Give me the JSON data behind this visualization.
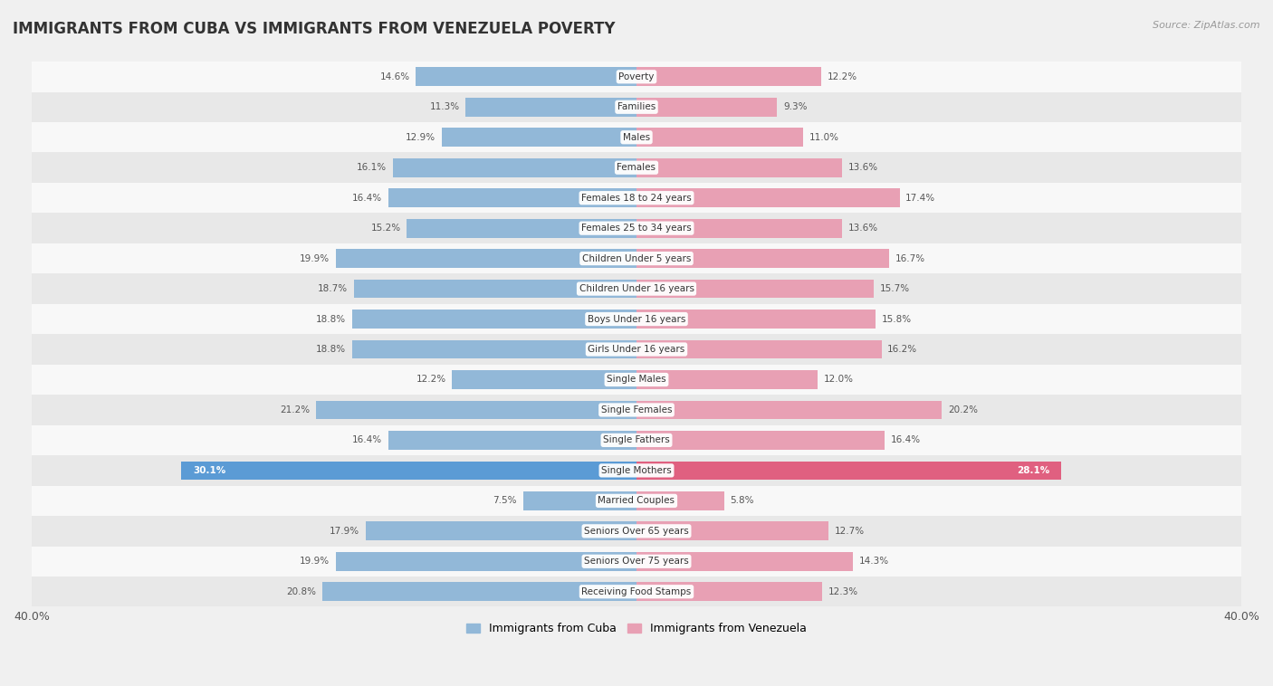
{
  "title": "IMMIGRANTS FROM CUBA VS IMMIGRANTS FROM VENEZUELA POVERTY",
  "source": "Source: ZipAtlas.com",
  "categories": [
    "Poverty",
    "Families",
    "Males",
    "Females",
    "Females 18 to 24 years",
    "Females 25 to 34 years",
    "Children Under 5 years",
    "Children Under 16 years",
    "Boys Under 16 years",
    "Girls Under 16 years",
    "Single Males",
    "Single Females",
    "Single Fathers",
    "Single Mothers",
    "Married Couples",
    "Seniors Over 65 years",
    "Seniors Over 75 years",
    "Receiving Food Stamps"
  ],
  "cuba_values": [
    14.6,
    11.3,
    12.9,
    16.1,
    16.4,
    15.2,
    19.9,
    18.7,
    18.8,
    18.8,
    12.2,
    21.2,
    16.4,
    30.1,
    7.5,
    17.9,
    19.9,
    20.8
  ],
  "venezuela_values": [
    12.2,
    9.3,
    11.0,
    13.6,
    17.4,
    13.6,
    16.7,
    15.7,
    15.8,
    16.2,
    12.0,
    20.2,
    16.4,
    28.1,
    5.8,
    12.7,
    14.3,
    12.3
  ],
  "cuba_color": "#92b8d8",
  "venezuela_color": "#e8a0b4",
  "single_mothers_cuba_color": "#5b9bd5",
  "single_mothers_venezuela_color": "#e06080",
  "bar_height": 0.62,
  "xlim": 40.0,
  "background_color": "#f0f0f0",
  "row_bg_even": "#f8f8f8",
  "row_bg_odd": "#e8e8e8",
  "legend_cuba": "Immigrants from Cuba",
  "legend_venezuela": "Immigrants from Venezuela",
  "title_fontsize": 12,
  "label_fontsize": 7.5,
  "value_fontsize": 7.5,
  "axis_label_fontsize": 9
}
